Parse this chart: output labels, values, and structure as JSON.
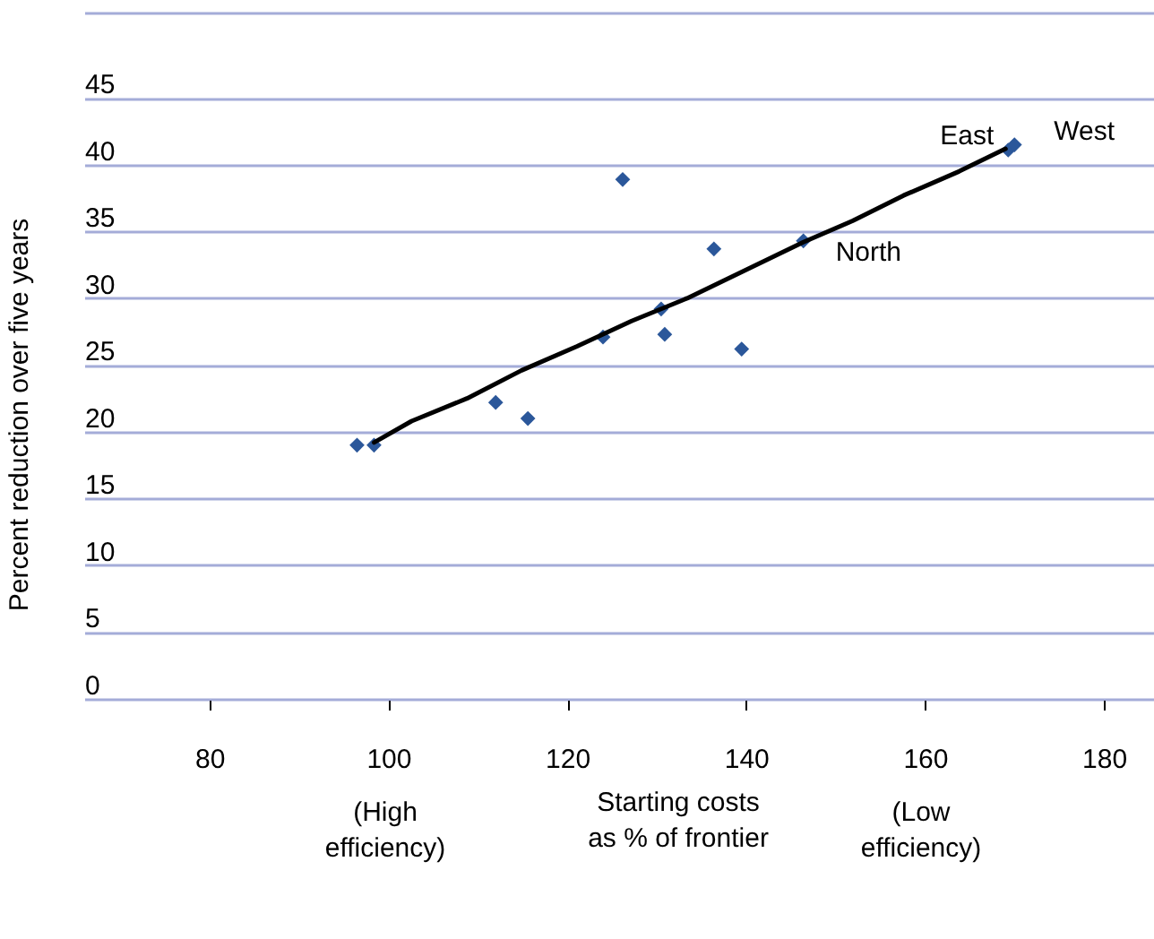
{
  "chart_data": {
    "type": "scatter",
    "ylabel": "Percent reduction over five years",
    "xlabel": "Starting costs\nas % of frontier",
    "annotations": [
      "(High\nefficiency)",
      "(Low\nefficiency)",
      {
        "text": "East",
        "x": 169.3,
        "y": 41.1
      },
      {
        "text": "West",
        "x": 170,
        "y": 41.5
      },
      {
        "text": "North",
        "x": 146.4,
        "y": 34.3
      }
    ],
    "series": [
      {
        "type": "scatter",
        "marker": "diamond",
        "color": "#2b579a",
        "x": [
          96.5,
          98.4,
          112,
          115.6,
          124,
          126.2,
          130.5,
          130.9,
          136.4,
          139.5,
          146.4,
          169.3,
          170
        ],
        "values": [
          19.0,
          19.0,
          22.2,
          21.0,
          27.1,
          38.9,
          29.2,
          27.3,
          33.7,
          26.2,
          34.3,
          41.1,
          41.5
        ]
      },
      {
        "type": "line",
        "marker": "none",
        "color": "#000000",
        "x": [
          98.4,
          102.6,
          108.8,
          114.9,
          121.1,
          127.2,
          133.4,
          146.4,
          151.9,
          157.6,
          163.8,
          169
        ],
        "values": [
          19.2,
          20.8,
          22.5,
          24.6,
          26.4,
          28.3,
          30.0,
          34.2,
          35.8,
          37.7,
          39.5,
          41.2
        ]
      }
    ],
    "xlim": [
      66,
      185.6
    ],
    "xticks": [
      80,
      100,
      120,
      140,
      160,
      180
    ],
    "ylim": [
      0,
      51.4
    ],
    "yticks": [
      0,
      5,
      10,
      15,
      20,
      25,
      30,
      35,
      40,
      45,
      {
        "value": 51.4,
        "label": null
      }
    ],
    "grid": "y"
  }
}
